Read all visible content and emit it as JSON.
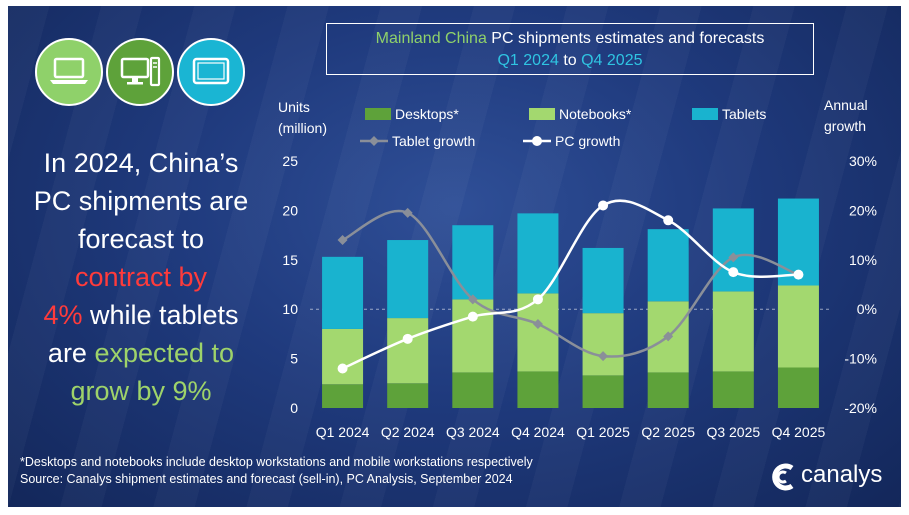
{
  "headline": {
    "line1": "In 2024, China’s",
    "line2": "PC shipments are",
    "line3": "forecast to",
    "line4_red": "contract by",
    "line5_red": "4%",
    "line5_rest": " while tablets",
    "line6_pre": "are ",
    "line6_green": "expected to",
    "line7_green": "grow by 9%"
  },
  "title": {
    "part1": "Mainland China",
    "part2": " PC shipments estimates and forecasts",
    "part3": "Q1 2024",
    "part4": " to ",
    "part5": "Q4 2025"
  },
  "footnote": {
    "line1": "*Desktops and notebooks include desktop workstations and mobile workstations respectively",
    "line2": "Source: Canalys shipment estimates and forecast (sell-in), PC Analysis, September 2024"
  },
  "logo": {
    "text": "canalys"
  },
  "icons": {
    "laptop": "laptop-icon",
    "desktop": "desktop-icon",
    "tablet": "tablet-icon"
  },
  "colors": {
    "desktops": "#5ea23a",
    "notebooks": "#a3d86f",
    "tablets": "#19b3cf",
    "tablet_growth": "#8a8f99",
    "pc_growth": "#ffffff"
  },
  "chart_data": {
    "type": "bar",
    "stacked": true,
    "categories": [
      "Q1 2024",
      "Q2 2024",
      "Q3 2024",
      "Q4 2024",
      "Q1 2025",
      "Q2 2025",
      "Q3 2025",
      "Q4 2025"
    ],
    "ylabel": [
      "Units",
      "(million)"
    ],
    "y2label": [
      "Annual",
      "growth"
    ],
    "ylim": [
      0,
      25
    ],
    "yticks": [
      "0",
      "5",
      "10",
      "15",
      "20",
      "25"
    ],
    "y2lim": [
      -20,
      30
    ],
    "y2ticks": [
      "-20%",
      "-10%",
      "0%",
      "10%",
      "20%",
      "30%"
    ],
    "series": [
      {
        "name": "Desktops*",
        "values": [
          2.4,
          2.5,
          3.6,
          3.7,
          3.3,
          3.6,
          3.7,
          4.1
        ]
      },
      {
        "name": "Notebooks*",
        "values": [
          5.6,
          6.6,
          7.4,
          7.9,
          6.3,
          7.2,
          8.1,
          8.3
        ]
      },
      {
        "name": "Tablets",
        "values": [
          7.3,
          7.9,
          7.5,
          8.1,
          6.6,
          7.3,
          8.4,
          8.8
        ]
      }
    ],
    "lines": [
      {
        "name": "Tablet growth",
        "axis": "right",
        "values": [
          14,
          19.5,
          2,
          -3,
          -9.5,
          -5.5,
          10.5,
          7
        ]
      },
      {
        "name": "PC growth",
        "axis": "right",
        "values": [
          -12,
          -6,
          -1.5,
          2,
          21,
          18,
          7.5,
          7
        ]
      }
    ],
    "legend": "top"
  }
}
